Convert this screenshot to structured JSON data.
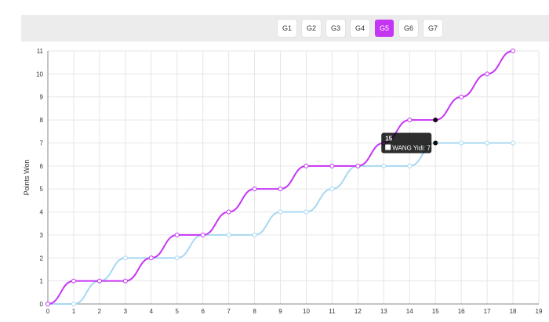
{
  "game_tabs": [
    {
      "label": "G1",
      "active": false
    },
    {
      "label": "G2",
      "active": false
    },
    {
      "label": "G3",
      "active": false
    },
    {
      "label": "G4",
      "active": false
    },
    {
      "label": "G5",
      "active": true
    },
    {
      "label": "G6",
      "active": false
    },
    {
      "label": "G7",
      "active": false
    }
  ],
  "colors": {
    "accent": "#c535f4",
    "series_1": "#c535f4",
    "series_2": "#a8d8f2"
  },
  "chart_data": {
    "type": "line",
    "ylabel": "Points Won",
    "xlabel": "",
    "xlim": [
      0,
      19
    ],
    "ylim": [
      0,
      11
    ],
    "grid": true,
    "x_ticks": [
      0,
      1,
      2,
      3,
      4,
      5,
      6,
      7,
      8,
      9,
      10,
      11,
      12,
      13,
      14,
      15,
      16,
      17,
      18,
      19
    ],
    "y_ticks": [
      0,
      1,
      2,
      3,
      4,
      5,
      6,
      7,
      8,
      9,
      10,
      11
    ],
    "x": [
      0,
      1,
      2,
      3,
      4,
      5,
      6,
      7,
      8,
      9,
      10,
      11,
      12,
      13,
      14,
      15,
      16,
      17,
      18
    ],
    "series": [
      {
        "color": "#c535f4",
        "values": [
          0,
          1,
          1,
          1,
          2,
          3,
          3,
          4,
          5,
          5,
          6,
          6,
          6,
          7,
          8,
          8,
          9,
          10,
          11
        ]
      },
      {
        "name": "WANG Yidi",
        "color": "#a8d8f2",
        "values": [
          0,
          0,
          1,
          2,
          2,
          2,
          3,
          3,
          3,
          4,
          4,
          5,
          6,
          6,
          6,
          7,
          7,
          7,
          7
        ]
      }
    ],
    "tooltip": {
      "title": "15",
      "text": "WANG Yidi: 7",
      "x": 15
    }
  }
}
